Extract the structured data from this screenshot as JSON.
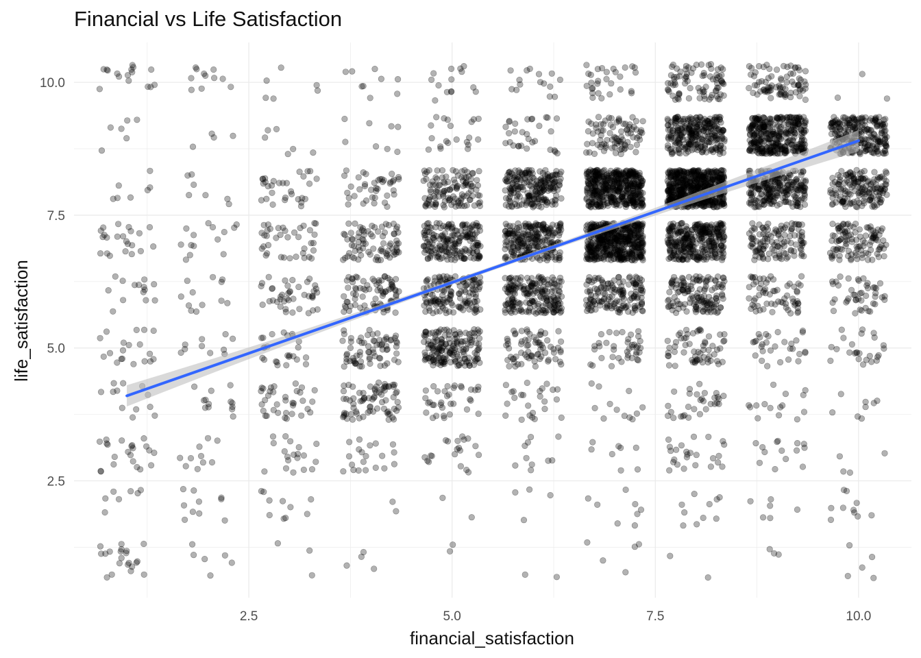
{
  "chart_data": {
    "type": "scatter",
    "title": "Financial vs Life Satisfaction",
    "xlabel": "financial_satisfaction",
    "ylabel": "life_satisfaction",
    "xlim": [
      0.35,
      10.65
    ],
    "ylim": [
      0.3,
      10.75
    ],
    "x_ticks": [
      "2.5",
      "5.0",
      "7.5",
      "10.0"
    ],
    "y_ticks": [
      "2.5",
      "5.0",
      "7.5",
      "10.0"
    ],
    "grid": true,
    "legend": "none",
    "point_color": "#000000",
    "point_alpha": 0.3,
    "jitter": 0.35,
    "trend": {
      "method": "linear",
      "color": "#3366FF",
      "band_color": "#bfbfbf",
      "points": [
        {
          "x": 1,
          "y": 4.1
        },
        {
          "x": 10,
          "y": 8.9
        }
      ]
    },
    "counts": [
      {
        "x": 1,
        "y": [
          10,
          14,
          1,
          9,
          1,
          12,
          3,
          9,
          7,
          11,
          2,
          7,
          3,
          13,
          4,
          12,
          5,
          19,
          6,
          14,
          7,
          11,
          8,
          7,
          9,
          6,
          10,
          2
        ]
      },
      {
        "x": 2,
        "y": [
          10,
          8,
          1,
          6,
          2,
          10,
          3,
          10,
          4,
          13,
          5,
          10,
          6,
          12,
          7,
          14,
          8,
          7,
          9,
          4,
          10,
          3
        ]
      },
      {
        "x": 3,
        "y": [
          10,
          3,
          1,
          3,
          2,
          10,
          3,
          19,
          4,
          35,
          5,
          25,
          6,
          42,
          7,
          38,
          8,
          30,
          9,
          6,
          10,
          3
        ]
      },
      {
        "x": 4,
        "y": [
          10,
          3,
          1,
          4,
          2,
          2,
          3,
          20,
          4,
          75,
          5,
          70,
          6,
          85,
          7,
          80,
          8,
          40,
          9,
          8,
          10,
          6
        ]
      },
      {
        "x": 5,
        "y": [
          10,
          2,
          1,
          2,
          2,
          2,
          3,
          20,
          4,
          35,
          5,
          170,
          6,
          150,
          7,
          190,
          8,
          120,
          9,
          20,
          10,
          12
        ]
      },
      {
        "x": 6,
        "y": [
          10,
          1,
          1,
          2,
          2,
          4,
          3,
          10,
          4,
          25,
          5,
          70,
          6,
          200,
          7,
          240,
          8,
          210,
          9,
          30,
          10,
          14
        ]
      },
      {
        "x": 7,
        "y": [
          10,
          4,
          1,
          5,
          2,
          8,
          3,
          8,
          4,
          12,
          5,
          40,
          6,
          150,
          7,
          500,
          8,
          450,
          9,
          85,
          10,
          25
        ]
      },
      {
        "x": 8,
        "y": [
          10,
          2,
          1,
          2,
          2,
          10,
          3,
          25,
          4,
          30,
          5,
          60,
          6,
          140,
          7,
          320,
          8,
          600,
          9,
          270,
          10,
          80
        ]
      },
      {
        "x": 9,
        "y": [
          10,
          1,
          1,
          3,
          2,
          6,
          3,
          14,
          4,
          15,
          5,
          30,
          6,
          65,
          7,
          120,
          8,
          250,
          9,
          350,
          10,
          80
        ]
      },
      {
        "x": 10,
        "y": [
          10,
          3,
          1,
          5,
          2,
          10,
          3,
          4,
          4,
          8,
          5,
          25,
          6,
          45,
          7,
          110,
          8,
          160,
          9,
          250
        ]
      }
    ]
  }
}
